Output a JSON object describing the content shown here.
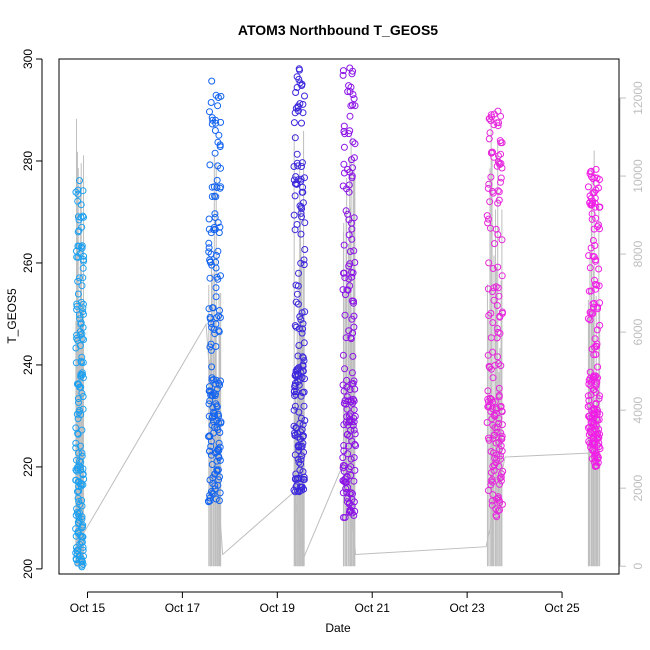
{
  "chart_data": {
    "type": "scatter",
    "title": "ATOM3 Northbound T_GEOS5",
    "xlabel": "Date",
    "ylabel": "T_GEOS5",
    "x_ticks": [
      "Oct 15",
      "Oct 17",
      "Oct 19",
      "Oct 21",
      "Oct 23",
      "Oct 25"
    ],
    "x_tick_days": [
      15,
      17,
      19,
      21,
      23,
      25
    ],
    "xlim_days": [
      14.4,
      26.2
    ],
    "y_ticks": [
      200,
      220,
      240,
      260,
      280,
      300
    ],
    "ylim": [
      199,
      300
    ],
    "y2_ticks": [
      0,
      2000,
      4000,
      6000,
      8000,
      10000,
      12000
    ],
    "y2lim": [
      -200,
      13000
    ],
    "colors": {
      "flight1": "#1ea0f0",
      "flight2": "#1464f0",
      "flight3": "#3c28dc",
      "flight4": "#8c14e6",
      "flight5": "#e628dc",
      "flight6": "#f01ee6",
      "altitude_line": "#bebebe"
    },
    "point_series": [
      {
        "flight": 1,
        "x_range_days": [
          14.75,
          14.92
        ],
        "y_range": [
          200,
          277
        ]
      },
      {
        "flight": 2,
        "x_range_days": [
          17.55,
          17.82
        ],
        "y_range": [
          213,
          296
        ]
      },
      {
        "flight": 3,
        "x_range_days": [
          19.35,
          19.58
        ],
        "y_range": [
          215,
          299
        ]
      },
      {
        "flight": 4,
        "x_range_days": [
          20.38,
          20.65
        ],
        "y_range": [
          210,
          299
        ]
      },
      {
        "flight": 5,
        "x_range_days": [
          23.42,
          23.75
        ],
        "y_range": [
          210,
          291
        ]
      },
      {
        "flight": 6,
        "x_range_days": [
          25.55,
          25.8
        ],
        "y_range": [
          220,
          280
        ]
      }
    ],
    "altitude_series": [
      {
        "x_day": 14.8,
        "alt": 600
      },
      {
        "x_day": 17.5,
        "alt": 6200
      },
      {
        "x_day": 17.85,
        "alt": 300
      },
      {
        "x_day": 19.35,
        "alt": 1900
      },
      {
        "x_day": 19.55,
        "alt": 200
      },
      {
        "x_day": 20.45,
        "alt": 2800
      },
      {
        "x_day": 20.65,
        "alt": 300
      },
      {
        "x_day": 23.4,
        "alt": 500
      },
      {
        "x_day": 23.8,
        "alt": 2800
      },
      {
        "x_day": 25.55,
        "alt": 2900
      }
    ]
  }
}
